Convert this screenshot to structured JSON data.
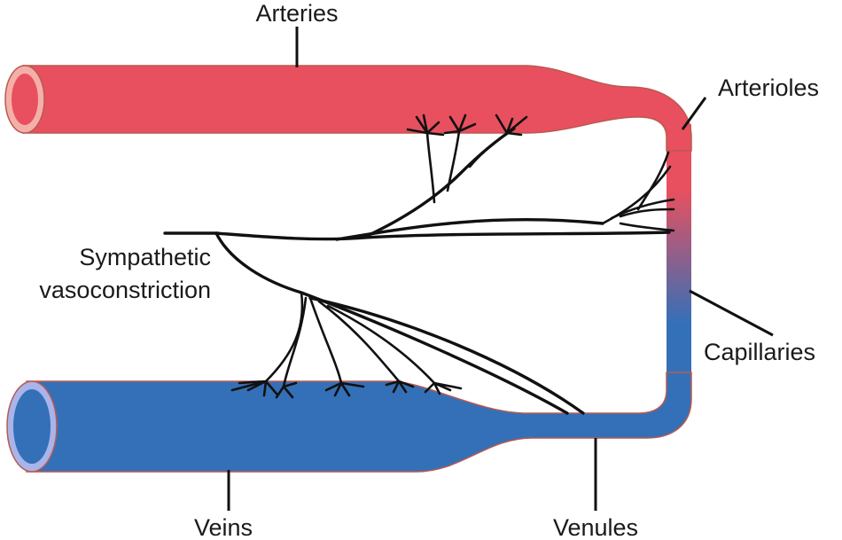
{
  "labels": {
    "arteries": "Arteries",
    "arterioles": "Arterioles",
    "capillaries": "Capillaries",
    "sympathetic_line1": "Sympathetic",
    "sympathetic_line2": "vasoconstriction",
    "veins": "Veins",
    "venules": "Venules"
  },
  "colors": {
    "artery": "#e8505f",
    "artery_lumen": "#f4b0a8",
    "vein": "#3470b8",
    "vein_lumen": "#a8b4ea",
    "vessel_outline": "#b85a50",
    "nerve": "#111111"
  }
}
